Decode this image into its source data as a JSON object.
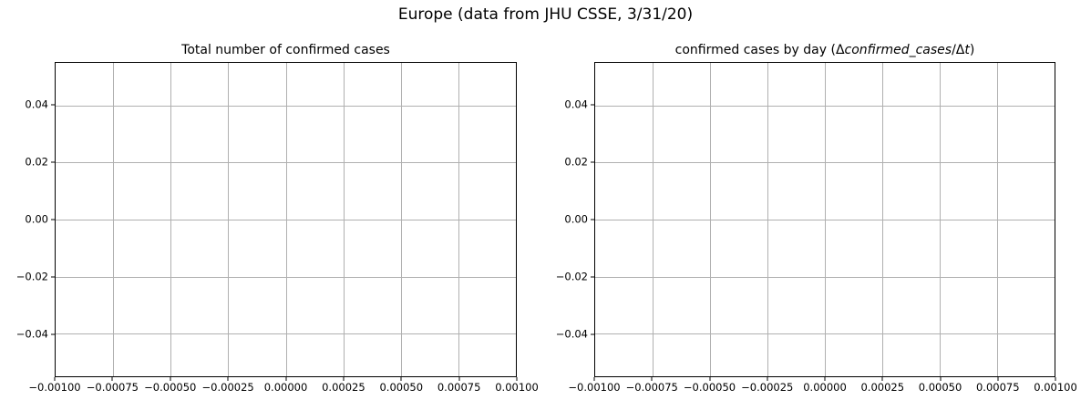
{
  "figure": {
    "suptitle": "Europe (data from JHU CSSE, 3/31/20)",
    "background_color": "#ffffff",
    "grid_color": "#b0b0b0",
    "spine_color": "#000000",
    "text_color": "#000000"
  },
  "chart_data": [
    {
      "type": "line",
      "title": "Total number of confirmed cases",
      "title_segments": [
        {
          "text": "Total number of confirmed cases",
          "italic": false
        }
      ],
      "xlabel": "",
      "ylabel": "",
      "xlim": [
        -0.001,
        0.001
      ],
      "ylim": [
        -0.055,
        0.055
      ],
      "grid": true,
      "legend": null,
      "series": [],
      "xticks": [
        {
          "value": -0.001,
          "label": "−0.00100"
        },
        {
          "value": -0.00075,
          "label": "−0.00075"
        },
        {
          "value": -0.0005,
          "label": "−0.00050"
        },
        {
          "value": -0.00025,
          "label": "−0.00025"
        },
        {
          "value": 0.0,
          "label": "0.00000"
        },
        {
          "value": 0.00025,
          "label": "0.00025"
        },
        {
          "value": 0.0005,
          "label": "0.00050"
        },
        {
          "value": 0.00075,
          "label": "0.00075"
        },
        {
          "value": 0.001,
          "label": "0.00100"
        }
      ],
      "yticks": [
        {
          "value": 0.04,
          "label": "0.04"
        },
        {
          "value": 0.02,
          "label": "0.02"
        },
        {
          "value": 0.0,
          "label": "0.00"
        },
        {
          "value": -0.02,
          "label": "−0.02"
        },
        {
          "value": -0.04,
          "label": "−0.04"
        }
      ]
    },
    {
      "type": "line",
      "title": "confirmed cases by day (Δconfirmed_cases/Δt)",
      "title_segments": [
        {
          "text": "confirmed cases by day ",
          "italic": false
        },
        {
          "text": "(",
          "italic": false
        },
        {
          "text": "Δ",
          "italic": false
        },
        {
          "text": "confirmed_cases",
          "italic": true
        },
        {
          "text": "/",
          "italic": false
        },
        {
          "text": "Δ",
          "italic": false
        },
        {
          "text": "t",
          "italic": true
        },
        {
          "text": ")",
          "italic": false
        }
      ],
      "xlabel": "",
      "ylabel": "",
      "xlim": [
        -0.001,
        0.001
      ],
      "ylim": [
        -0.055,
        0.055
      ],
      "grid": true,
      "legend": null,
      "series": [],
      "xticks": [
        {
          "value": -0.001,
          "label": "−0.00100"
        },
        {
          "value": -0.00075,
          "label": "−0.00075"
        },
        {
          "value": -0.0005,
          "label": "−0.00050"
        },
        {
          "value": -0.00025,
          "label": "−0.00025"
        },
        {
          "value": 0.0,
          "label": "0.00000"
        },
        {
          "value": 0.00025,
          "label": "0.00025"
        },
        {
          "value": 0.0005,
          "label": "0.00050"
        },
        {
          "value": 0.00075,
          "label": "0.00075"
        },
        {
          "value": 0.001,
          "label": "0.00100"
        }
      ],
      "yticks": [
        {
          "value": 0.04,
          "label": "0.04"
        },
        {
          "value": 0.02,
          "label": "0.02"
        },
        {
          "value": 0.0,
          "label": "0.00"
        },
        {
          "value": -0.02,
          "label": "−0.02"
        },
        {
          "value": -0.04,
          "label": "−0.04"
        }
      ]
    }
  ]
}
